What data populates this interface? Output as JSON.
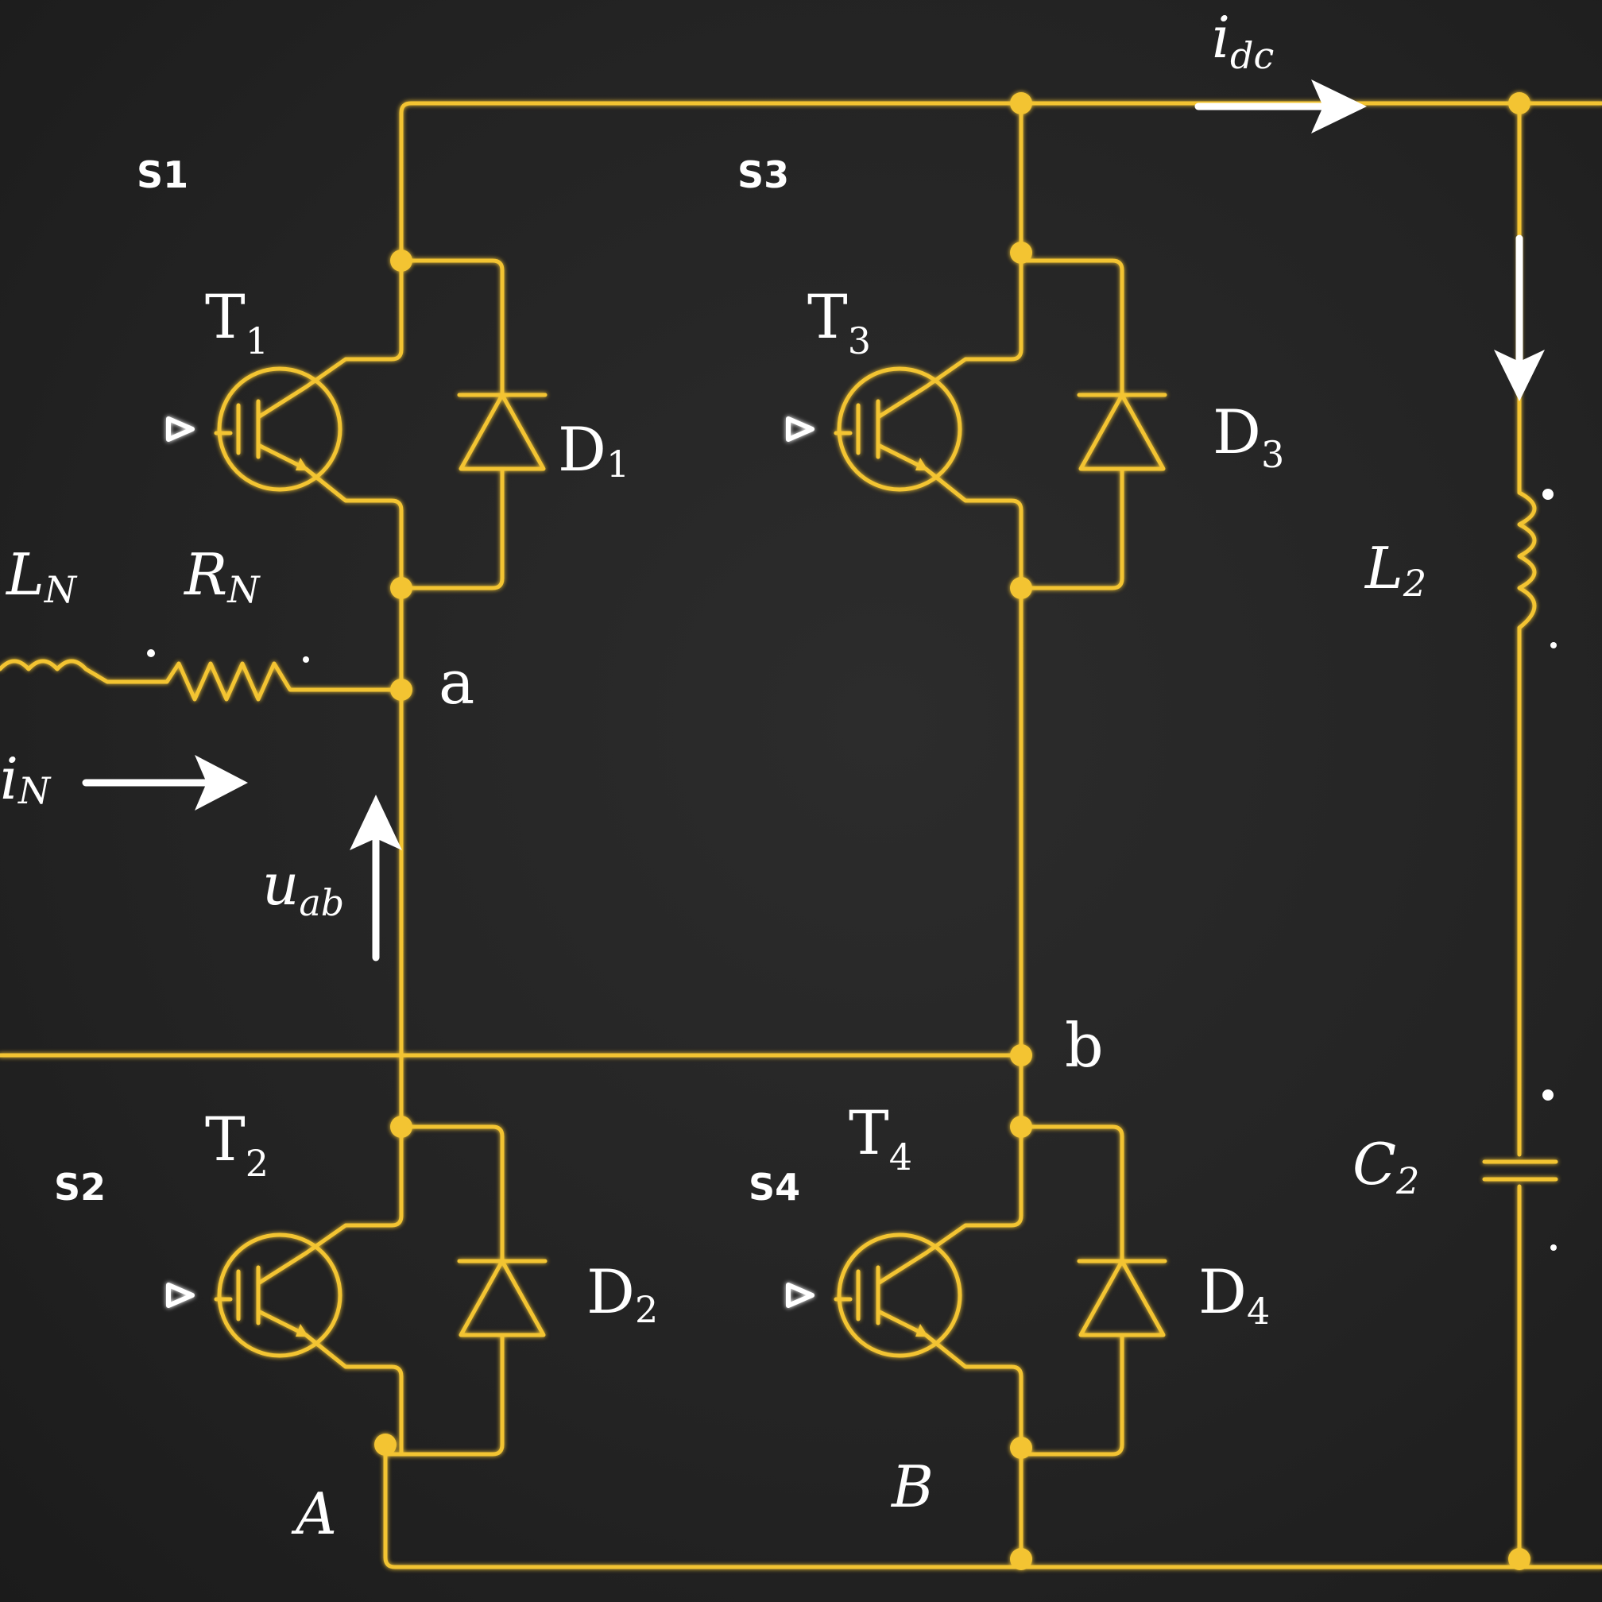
{
  "colors": {
    "wire": "#f3c431",
    "label": "#ffffff",
    "background": "#262626"
  },
  "labels": {
    "S1": "S1",
    "S2": "S2",
    "S3": "S3",
    "S4": "S4",
    "T1": "T",
    "T1_sub": "1",
    "T2": "T",
    "T2_sub": "2",
    "T3": "T",
    "T3_sub": "3",
    "T4": "T",
    "T4_sub": "4",
    "D1": "D",
    "D1_sub": "1",
    "D2": "D",
    "D2_sub": "2",
    "D3": "D",
    "D3_sub": "3",
    "D4": "D",
    "D4_sub": "4",
    "LN": "L",
    "LN_sub": "N",
    "RN": "R",
    "RN_sub": "N",
    "iN": "i",
    "iN_sub": "N",
    "uab": "u",
    "uab_sub": "ab",
    "idc": "i",
    "idc_sub": "dc",
    "L2": "L",
    "L2_sub": "2",
    "C2": "C",
    "C2_sub": "2",
    "node_a": "a",
    "node_b": "b",
    "node_A": "A",
    "node_B": "B"
  },
  "icons": [
    "igbt-symbol",
    "diode-symbol",
    "inductor-symbol",
    "resistor-symbol",
    "capacitor-symbol",
    "current-arrow"
  ]
}
